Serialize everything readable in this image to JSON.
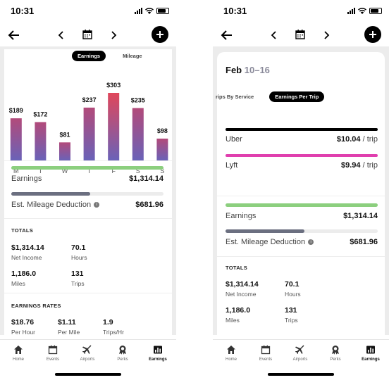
{
  "status": {
    "time": "10:31"
  },
  "left": {
    "toggle": {
      "earnings": "Earnings",
      "mileage": "Mileage"
    },
    "chart_data": {
      "type": "bar",
      "categories": [
        "M",
        "T",
        "W",
        "T",
        "F",
        "S",
        "S"
      ],
      "values": [
        189,
        172,
        81,
        237,
        303,
        235,
        98
      ],
      "value_labels": [
        "$189",
        "$172",
        "$81",
        "$237",
        "$303",
        "$235",
        "$98"
      ],
      "ylim": [
        0,
        303
      ],
      "highlight_index": 4,
      "colors": {
        "top": "#b24a7a",
        "bottom": "#6a62b8",
        "highlight_top": "#e0475b"
      }
    },
    "earnings": {
      "label": "Earnings",
      "value": "$1,314.14",
      "fill": 1.0,
      "color": "#8ccf7e"
    },
    "mileage": {
      "label": "Est. Mileage Deduction",
      "value": "$681.96",
      "fill": 0.52,
      "color": "#6b6f80"
    },
    "totals": {
      "heading": "TOTALS",
      "items": [
        {
          "value": "$1,314.14",
          "label": "Net Income"
        },
        {
          "value": "70.1",
          "label": "Hours"
        },
        {
          "value": "1,186.0",
          "label": "Miles"
        },
        {
          "value": "131",
          "label": "Trips"
        }
      ]
    },
    "rates": {
      "heading": "EARNINGS RATES",
      "items": [
        {
          "value": "$18.76",
          "label": "Per Hour"
        },
        {
          "value": "$1.11",
          "label": "Per Mile"
        },
        {
          "value": "1.9",
          "label": "Trips/Hr"
        }
      ]
    }
  },
  "right": {
    "title_main": "Feb",
    "title_range": "10–16",
    "toggle": {
      "by_service": "rips By Service",
      "per_trip": "Earnings Per Trip"
    },
    "services": [
      {
        "label": "Uber",
        "value": "$10.04",
        "unit": " / trip",
        "color": "#000000"
      },
      {
        "label": "Lyft",
        "value": "$9.94",
        "unit": " / trip",
        "color": "#e03fae"
      }
    ],
    "earnings": {
      "label": "Earnings",
      "value": "$1,314.14",
      "fill": 1.0,
      "color": "#8ccf7e"
    },
    "mileage": {
      "label": "Est. Mileage Deduction",
      "value": "$681.96",
      "fill": 0.52,
      "color": "#6b6f80"
    },
    "totals": {
      "heading": "TOTALS",
      "items": [
        {
          "value": "$1,314.14",
          "label": "Net Income"
        },
        {
          "value": "70.1",
          "label": "Hours"
        },
        {
          "value": "1,186.0",
          "label": "Miles"
        },
        {
          "value": "131",
          "label": "Trips"
        }
      ]
    }
  },
  "tabs": [
    {
      "label": "Home",
      "icon": "home-icon"
    },
    {
      "label": "Events",
      "icon": "calendar-icon"
    },
    {
      "label": "Airports",
      "icon": "plane-icon"
    },
    {
      "label": "Perks",
      "icon": "badge-icon"
    },
    {
      "label": "Earnings",
      "icon": "earnings-chart-icon",
      "active": true
    }
  ]
}
